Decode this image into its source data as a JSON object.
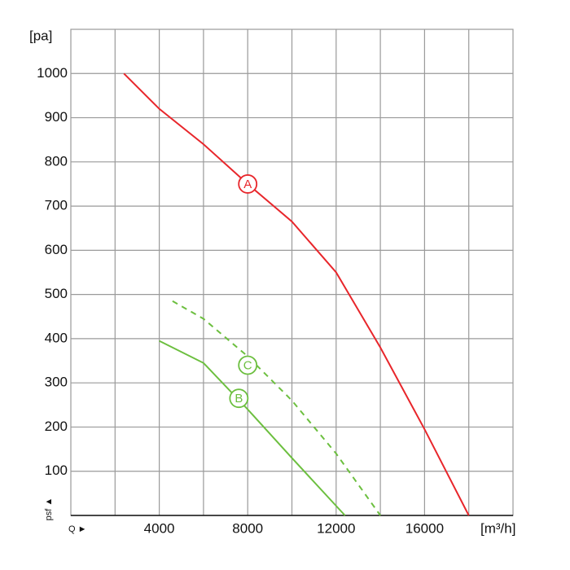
{
  "chart_data": {
    "type": "line",
    "y_label": "[pa]",
    "x_label": "[m³/h]",
    "y_unit_label": "psf ▲",
    "x_unit_label": "Q ►",
    "xlim": [
      0,
      20000
    ],
    "ylim": [
      0,
      1100
    ],
    "xticks": [
      4000,
      8000,
      12000,
      16000
    ],
    "xgrid": [
      2000,
      4000,
      6000,
      8000,
      10000,
      12000,
      14000,
      16000,
      18000
    ],
    "yticks": [
      100,
      200,
      300,
      400,
      500,
      600,
      700,
      800,
      900,
      1000
    ],
    "grid": true,
    "series": [
      {
        "name": "A",
        "color": "#e8262b",
        "dashed": false,
        "x": [
          2400,
          4000,
          6000,
          8000,
          10000,
          12000,
          14000,
          16000,
          18000
        ],
        "values": [
          1000,
          920,
          840,
          750,
          665,
          550,
          380,
          195,
          0
        ],
        "label_at": [
          8000,
          750
        ]
      },
      {
        "name": "B",
        "color": "#6cbf3f",
        "dashed": false,
        "x": [
          4000,
          6000,
          8000,
          10000,
          12400
        ],
        "values": [
          395,
          345,
          240,
          130,
          0
        ],
        "label_at": [
          7600,
          265
        ]
      },
      {
        "name": "C",
        "color": "#6cbf3f",
        "dashed": true,
        "x": [
          4600,
          6000,
          8000,
          10000,
          12000,
          14000
        ],
        "values": [
          485,
          445,
          360,
          260,
          140,
          0
        ],
        "label_at": [
          8000,
          340
        ]
      }
    ]
  }
}
